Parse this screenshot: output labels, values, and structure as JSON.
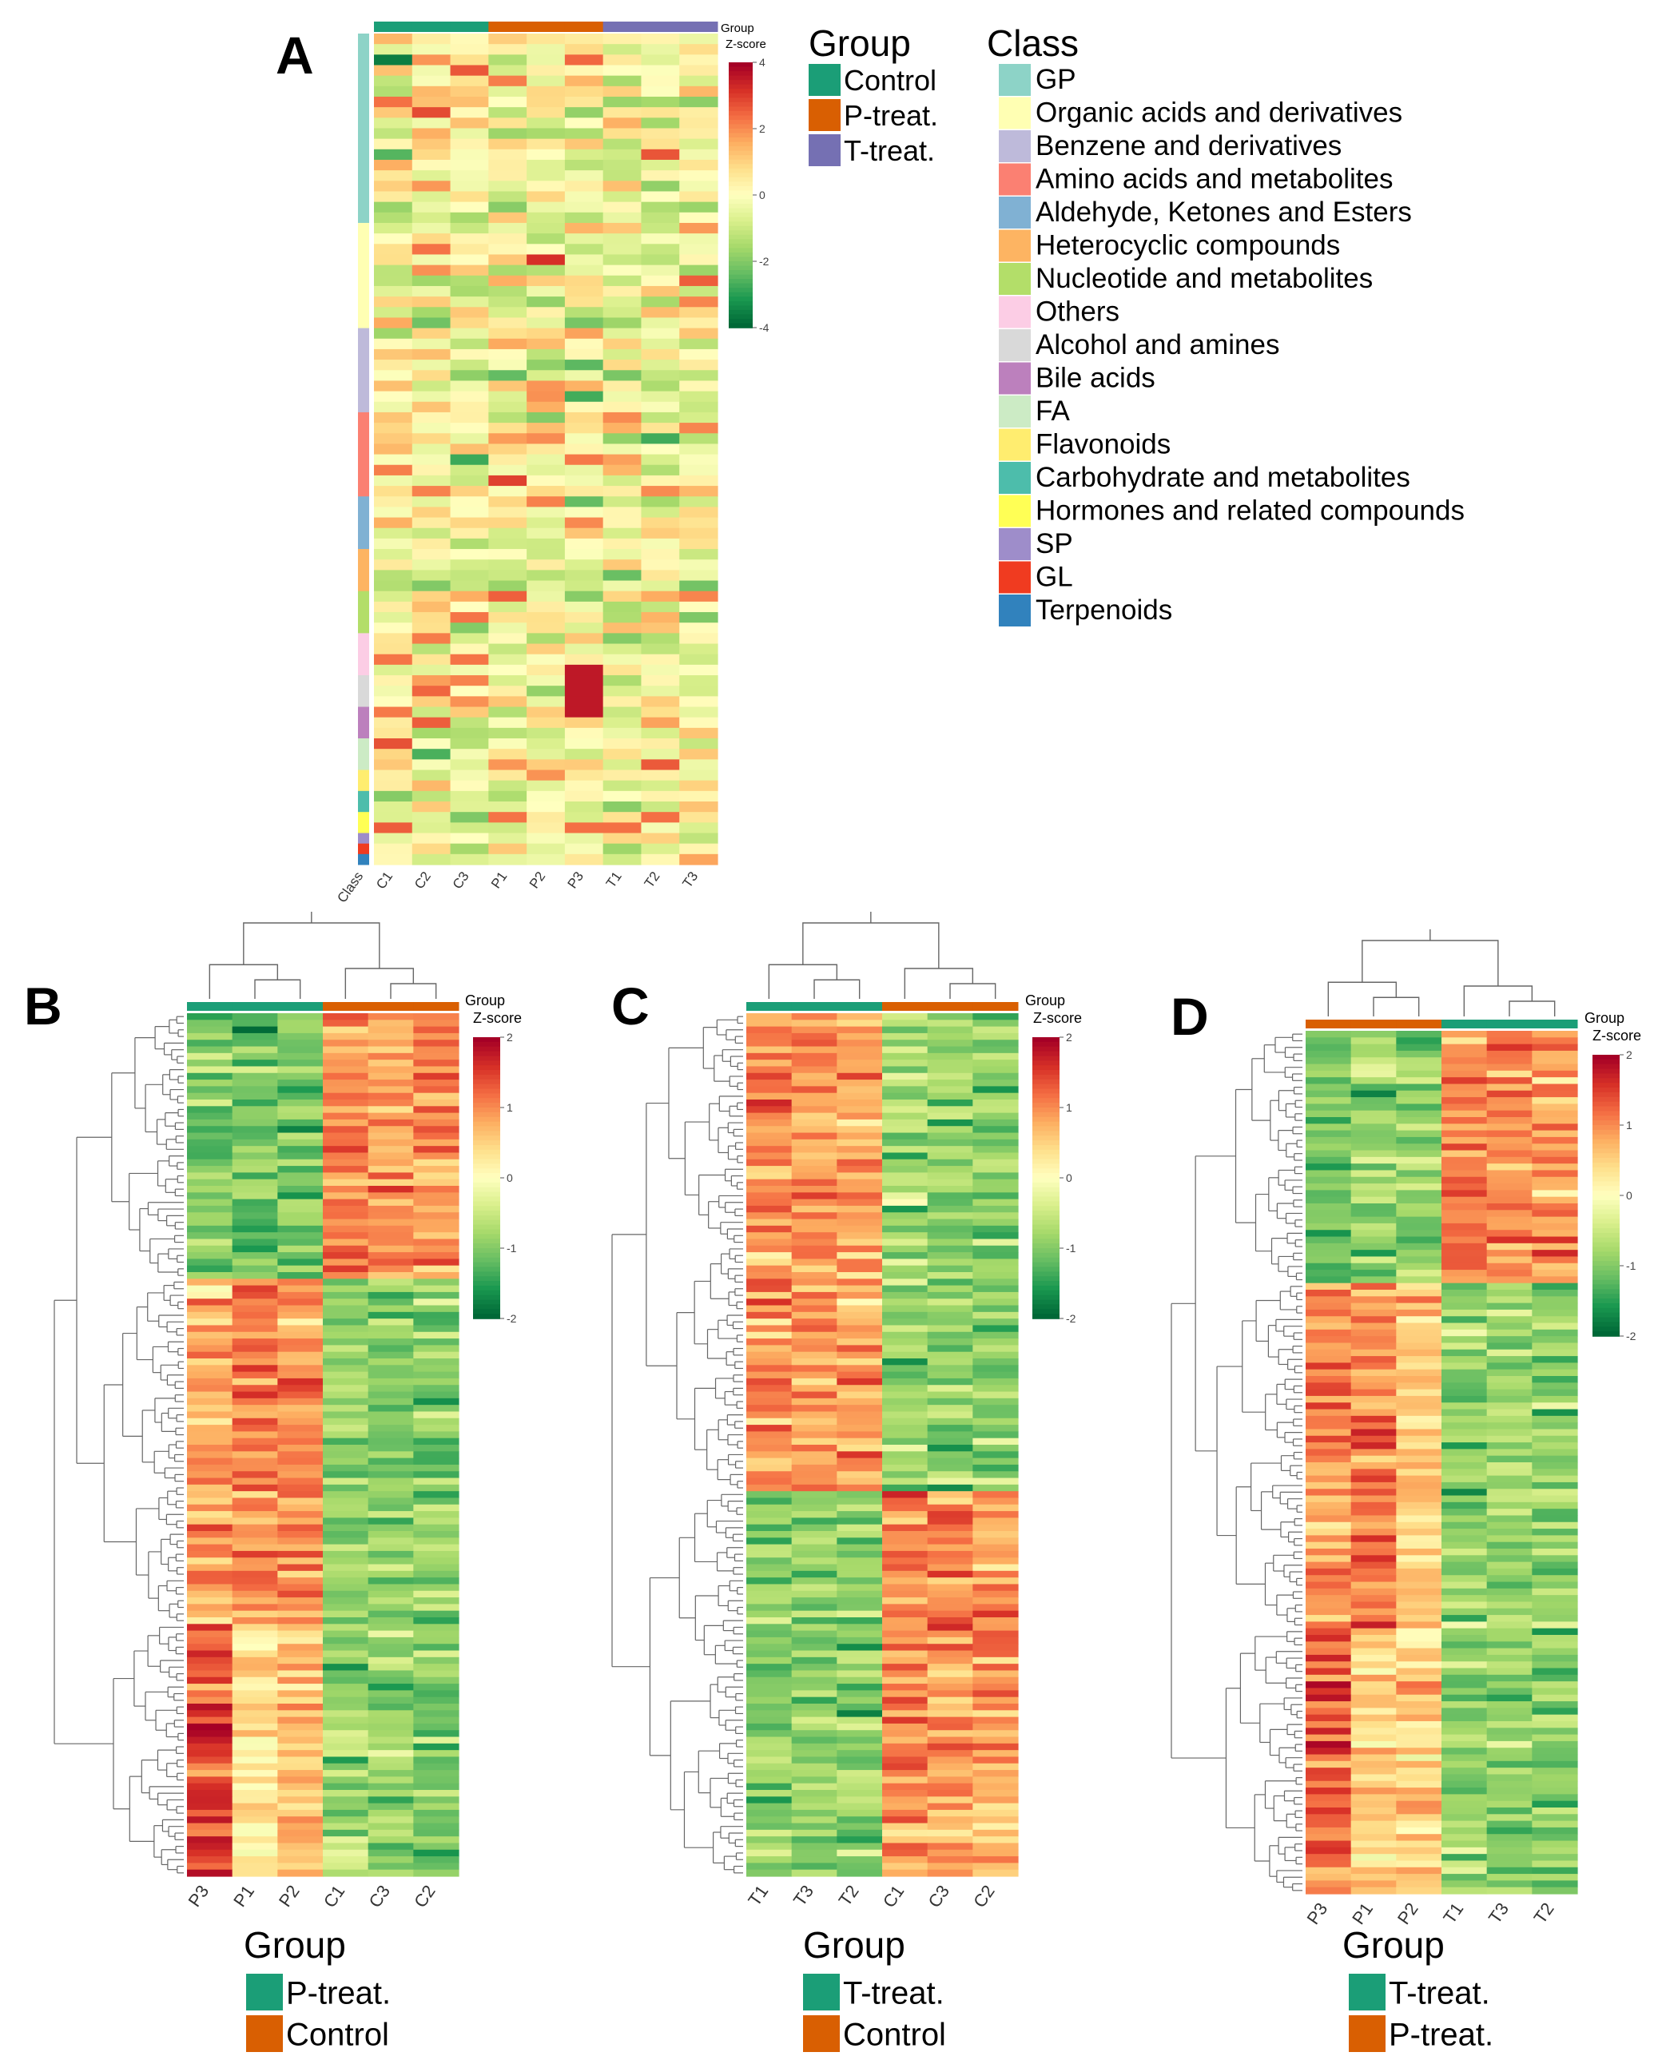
{
  "panel_labels": [
    "A",
    "B",
    "C",
    "D"
  ],
  "colors": {
    "control": "#1b9e77",
    "p_treat": "#d95f02",
    "t_treat": "#7570b3",
    "heat_low": "#006837",
    "heat_mid": "#ffffbf",
    "heat_high": "#a50026"
  },
  "panelA": {
    "annotation_label": "Group",
    "zscore_label": "Z-score",
    "zscore_ticks": [
      "4",
      "2",
      "0",
      "-2",
      "-4"
    ],
    "group_legend_title": "Group",
    "groups": [
      {
        "label": "Control",
        "color": "#1b9e77"
      },
      {
        "label": "P-treat.",
        "color": "#d95f02"
      },
      {
        "label": "T-treat.",
        "color": "#7570b3"
      }
    ],
    "class_legend_title": "Class",
    "classes": [
      {
        "label": "GP",
        "color": "#8dd3c7",
        "rows": 18
      },
      {
        "label": "Organic acids and derivatives",
        "color": "#ffffb3",
        "rows": 10
      },
      {
        "label": "Benzene and derivatives",
        "color": "#bebada",
        "rows": 8
      },
      {
        "label": "Amino acids and metabolites",
        "color": "#fb8072",
        "rows": 8
      },
      {
        "label": "Aldehyde, Ketones and Esters",
        "color": "#80b1d3",
        "rows": 5
      },
      {
        "label": "Heterocyclic compounds",
        "color": "#fdb462",
        "rows": 4
      },
      {
        "label": "Nucleotide and metabolites",
        "color": "#b3de69",
        "rows": 4
      },
      {
        "label": "Others",
        "color": "#fccde5",
        "rows": 4
      },
      {
        "label": "Alcohol and amines",
        "color": "#d9d9d9",
        "rows": 3
      },
      {
        "label": "Bile acids",
        "color": "#bc80bd",
        "rows": 3
      },
      {
        "label": "FA",
        "color": "#ccebc5",
        "rows": 3
      },
      {
        "label": "Flavonoids",
        "color": "#ffed6f",
        "rows": 2
      },
      {
        "label": "Carbohydrate and metabolites",
        "color": "#4dbdab",
        "rows": 2
      },
      {
        "label": "Hormones and related compounds",
        "color": "#ffff55",
        "rows": 2
      },
      {
        "label": "SP",
        "color": "#9e8dca",
        "rows": 1
      },
      {
        "label": "GL",
        "color": "#f03b20",
        "rows": 1
      },
      {
        "label": "Terpenoids",
        "color": "#3182bd",
        "rows": 1
      }
    ],
    "col_labels": [
      "Class",
      "C1",
      "C2",
      "C3",
      "P1",
      "P2",
      "P3",
      "T1",
      "T2",
      "T3"
    ]
  },
  "panelB": {
    "annotation_label": "Group",
    "zscore_label": "Z-score",
    "zscore_ticks": [
      "2",
      "1",
      "0",
      "-1",
      "-2"
    ],
    "col_labels": [
      "P3",
      "P1",
      "P2",
      "C1",
      "C3",
      "C2"
    ],
    "legend_title": "Group",
    "legend": [
      {
        "label": "P-treat.",
        "color": "#1b9e77"
      },
      {
        "label": "Control",
        "color": "#d95f02"
      }
    ]
  },
  "panelC": {
    "annotation_label": "Group",
    "zscore_label": "Z-score",
    "zscore_ticks": [
      "2",
      "1",
      "0",
      "-1",
      "-2"
    ],
    "col_labels": [
      "T1",
      "T3",
      "T2",
      "C1",
      "C3",
      "C2"
    ],
    "legend_title": "Group",
    "legend": [
      {
        "label": "T-treat.",
        "color": "#1b9e77"
      },
      {
        "label": "Control",
        "color": "#d95f02"
      }
    ]
  },
  "panelD": {
    "annotation_label": "Group",
    "zscore_label": "Z-score",
    "zscore_ticks": [
      "2",
      "1",
      "0",
      "-1",
      "-2"
    ],
    "col_labels": [
      "P3",
      "P1",
      "P2",
      "T1",
      "T3",
      "T2"
    ],
    "legend_title": "Group",
    "legend": [
      {
        "label": "T-treat.",
        "color": "#1b9e77"
      },
      {
        "label": "P-treat.",
        "color": "#d95f02"
      }
    ]
  },
  "chart_data": [
    {
      "type": "heatmap",
      "title": "A",
      "columns": [
        "C1",
        "C2",
        "C3",
        "P1",
        "P2",
        "P3",
        "T1",
        "T2",
        "T3"
      ],
      "column_groups": [
        "Control",
        "Control",
        "Control",
        "P-treat.",
        "P-treat.",
        "P-treat.",
        "T-treat.",
        "T-treat.",
        "T-treat."
      ],
      "rows": 79,
      "value_range": [
        -4,
        4
      ],
      "colorscale_label": "Z-score"
    },
    {
      "type": "heatmap",
      "title": "B",
      "columns": [
        "P3",
        "P1",
        "P2",
        "C1",
        "C3",
        "C2"
      ],
      "column_groups": [
        "P-treat.",
        "P-treat.",
        "P-treat.",
        "Control",
        "Control",
        "Control"
      ],
      "rows": 130,
      "value_range": [
        -2,
        2
      ],
      "colorscale_label": "Z-score",
      "row_clusters": [
        {
          "rows": 40,
          "mean_by_column": [
            -1.0,
            -1.1,
            -1.0,
            1.1,
            0.9,
            0.9
          ]
        },
        {
          "rows": 52,
          "mean_by_column": [
            0.8,
            1.0,
            1.0,
            -0.9,
            -1.0,
            -1.0
          ]
        },
        {
          "rows": 38,
          "mean_by_column": [
            1.4,
            0.3,
            0.6,
            -0.8,
            -0.9,
            -1.1
          ]
        }
      ]
    },
    {
      "type": "heatmap",
      "title": "C",
      "columns": [
        "T1",
        "T3",
        "T2",
        "C1",
        "C3",
        "C2"
      ],
      "column_groups": [
        "T-treat.",
        "T-treat.",
        "T-treat.",
        "Control",
        "Control",
        "Control"
      ],
      "rows": 130,
      "value_range": [
        -2,
        2
      ],
      "colorscale_label": "Z-score",
      "row_clusters": [
        {
          "rows": 72,
          "mean_by_column": [
            0.9,
            0.9,
            0.8,
            -0.8,
            -0.9,
            -1.0
          ]
        },
        {
          "rows": 58,
          "mean_by_column": [
            -0.9,
            -0.9,
            -0.9,
            1.0,
            0.9,
            0.8
          ]
        }
      ]
    },
    {
      "type": "heatmap",
      "title": "D",
      "columns": [
        "P3",
        "P1",
        "P2",
        "T1",
        "T3",
        "T2"
      ],
      "column_groups": [
        "P-treat.",
        "P-treat.",
        "P-treat.",
        "T-treat.",
        "T-treat.",
        "T-treat."
      ],
      "rows": 130,
      "value_range": [
        -2,
        2
      ],
      "colorscale_label": "Z-score",
      "row_clusters": [
        {
          "rows": 38,
          "mean_by_column": [
            -1.1,
            -0.9,
            -1.0,
            1.0,
            1.0,
            0.9
          ]
        },
        {
          "rows": 52,
          "mean_by_column": [
            1.0,
            1.1,
            0.6,
            -0.9,
            -0.8,
            -0.9
          ]
        },
        {
          "rows": 40,
          "mean_by_column": [
            1.3,
            0.5,
            0.5,
            -0.8,
            -0.9,
            -1.0
          ]
        }
      ]
    }
  ]
}
